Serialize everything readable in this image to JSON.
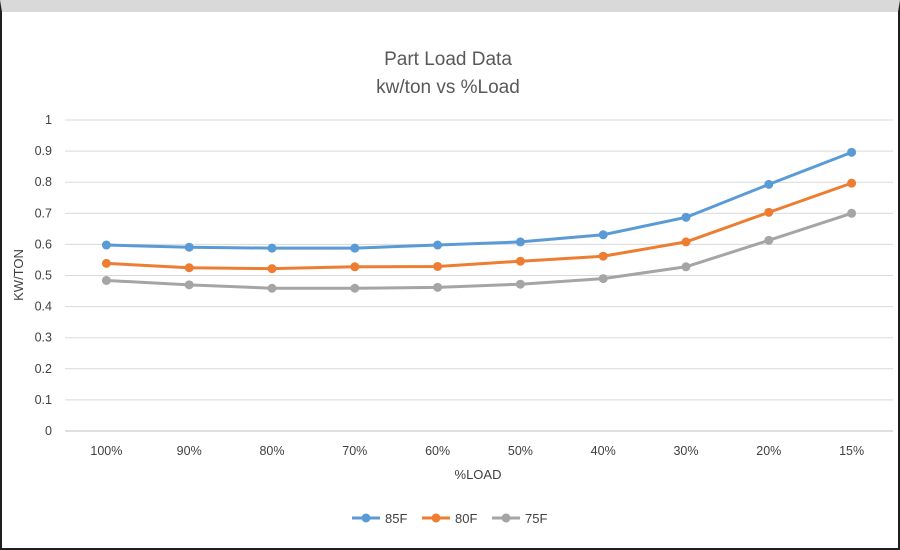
{
  "chart_data": {
    "type": "line",
    "title": "Part Load Data",
    "subtitle": "kw/ton vs %Load",
    "xlabel": "%LOAD",
    "ylabel": "KW/TON",
    "categories": [
      "100%",
      "90%",
      "80%",
      "70%",
      "60%",
      "50%",
      "40%",
      "30%",
      "20%",
      "15%"
    ],
    "ylim": [
      0,
      1
    ],
    "yticks": [
      "0",
      "0.1",
      "0.2",
      "0.3",
      "0.4",
      "0.5",
      "0.6",
      "0.7",
      "0.8",
      "0.9",
      "1"
    ],
    "grid": true,
    "legend_position": "bottom",
    "series": [
      {
        "name": "85F",
        "color": "#5b9bd5",
        "values": [
          0.598,
          0.591,
          0.588,
          0.588,
          0.598,
          0.608,
          0.631,
          0.687,
          0.793,
          0.896
        ]
      },
      {
        "name": "80F",
        "color": "#ed7d31",
        "values": [
          0.539,
          0.525,
          0.522,
          0.528,
          0.529,
          0.546,
          0.562,
          0.608,
          0.703,
          0.797
        ]
      },
      {
        "name": "75F",
        "color": "#a5a5a5",
        "values": [
          0.484,
          0.47,
          0.459,
          0.459,
          0.462,
          0.472,
          0.49,
          0.528,
          0.613,
          0.7
        ]
      }
    ]
  }
}
